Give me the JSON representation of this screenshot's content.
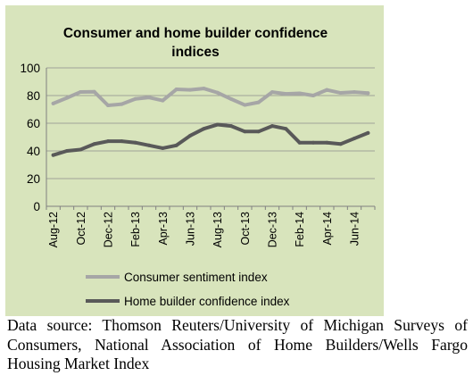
{
  "chart_data": {
    "type": "line",
    "title": "Consumer and home builder confidence indices",
    "title_lines": [
      "Consumer and home builder confidence",
      "indices"
    ],
    "ylim": [
      0,
      100
    ],
    "yticks": [
      0,
      20,
      40,
      60,
      80,
      100
    ],
    "xlabel": "",
    "ylabel": "",
    "grid": true,
    "legend_position": "bottom",
    "x": [
      "Aug-12",
      "Sep-12",
      "Oct-12",
      "Nov-12",
      "Dec-12",
      "Jan-13",
      "Feb-13",
      "Mar-13",
      "Apr-13",
      "May-13",
      "Jun-13",
      "Jul-13",
      "Aug-13",
      "Sep-13",
      "Oct-13",
      "Nov-13",
      "Dec-13",
      "Jan-14",
      "Feb-14",
      "Mar-14",
      "Apr-14",
      "May-14",
      "Jun-14",
      "Jul-14"
    ],
    "tick_labels": [
      "Aug-12",
      "Oct-12",
      "Dec-12",
      "Feb-13",
      "Apr-13",
      "Jun-13",
      "Aug-13",
      "Oct-13",
      "Dec-13",
      "Feb-14",
      "Apr-14",
      "Jun-14"
    ],
    "series": [
      {
        "name": "Consumer sentiment index",
        "color": "#a6a6a6",
        "values": [
          74.3,
          78.3,
          82.6,
          82.7,
          72.9,
          73.8,
          77.6,
          78.6,
          76.4,
          84.5,
          84.1,
          85.1,
          82.1,
          77.5,
          73.2,
          75.1,
          82.5,
          81.2,
          81.6,
          80.0,
          84.1,
          81.9,
          82.5,
          81.8
        ]
      },
      {
        "name": "Home builder confidence index",
        "color": "#595959",
        "values": [
          37,
          40,
          41,
          45,
          47,
          47,
          46,
          44,
          42,
          44,
          51,
          56,
          59,
          58,
          54,
          54,
          58,
          56,
          46,
          46,
          46,
          45,
          49,
          53
        ]
      }
    ]
  },
  "source_note": "Data source: Thomson Reuters/University of Michigan Surveys of Consumers, National Association of Home Builders/Wells Fargo Housing Market Index"
}
